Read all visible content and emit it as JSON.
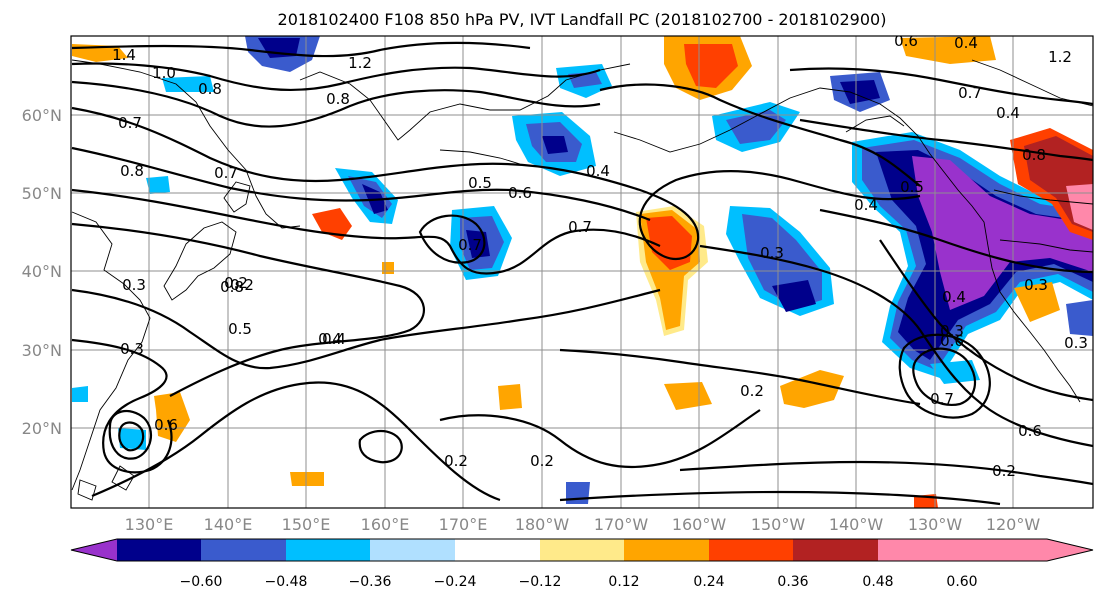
{
  "map": {
    "title": "2018102400 F108 850 hPa PV, IVT Landfall PC (2018102700 - 2018102900)",
    "lat_labels": [
      "60°N",
      "50°N",
      "40°N",
      "30°N",
      "20°N"
    ],
    "lon_labels": [
      "130°E",
      "140°E",
      "150°E",
      "160°E",
      "170°E",
      "180°W",
      "170°W",
      "160°W",
      "150°W",
      "140°W",
      "130°W",
      "120°W"
    ],
    "contour_labels": [
      "1.4",
      "1.0",
      "0.8",
      "1.2",
      "0.8",
      "0.7",
      "0.8",
      "0.7",
      "0.5",
      "0.6",
      "0.7",
      "0.4",
      "0.8",
      "0.2",
      "0.5",
      "0.4",
      "0.3",
      "0.4",
      "0.6",
      "0.4",
      "0.5",
      "0.4",
      "0.3",
      "0.3",
      "0.6",
      "0.7",
      "0.2",
      "0.2",
      "0.6",
      "0.2",
      "0.2",
      "0.4",
      "1.2",
      "0.7",
      "0.4",
      "0.8",
      "0.3",
      "0.3",
      "0.2",
      "0.3",
      "0.7",
      "0.6"
    ]
  },
  "colorbar": {
    "tick_labels": [
      "−0.60",
      "−0.48",
      "−0.36",
      "−0.24",
      "−0.12",
      "0.12",
      "0.24",
      "0.36",
      "0.48",
      "0.60"
    ],
    "colors": [
      "#9932cc",
      "#00008b",
      "#3a5bcd",
      "#00bfff",
      "#b0e0ff",
      "#ffffff",
      "#ffea8a",
      "#ffa500",
      "#ff4000",
      "#b22222",
      "#ff88aa"
    ]
  }
}
